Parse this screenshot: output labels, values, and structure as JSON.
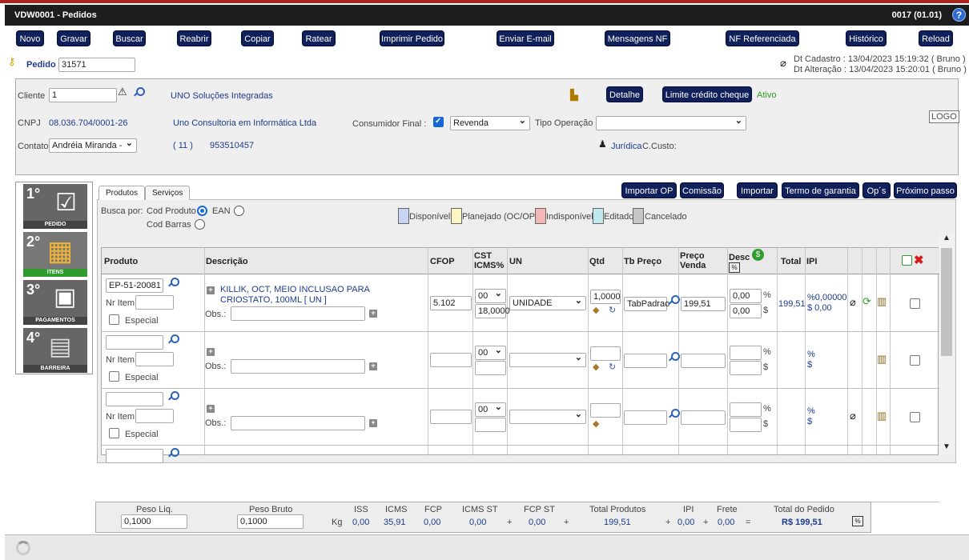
{
  "window": {
    "title": "VDW0001 - Pedidos",
    "code": "0017 (01.01)",
    "help": "?"
  },
  "toolbar": [
    "Novo",
    "Gravar",
    "Buscar",
    "Reabrir",
    "Copiar",
    "Ratear",
    "Imprimir Pedido",
    "Enviar E-mail",
    "Mensagens NF",
    "NF Referenciada",
    "Histórico",
    "Reload"
  ],
  "pedido": {
    "label": "Pedido",
    "value": "31571",
    "dt_cadastro": "Dt Cadastro : 13/04/2023 15:19:32 ( Bruno )",
    "dt_alteracao": "Dt Alteração : 13/04/2023 15:20:01 ( Bruno )"
  },
  "cliente": {
    "label": "Cliente",
    "value": "1",
    "name": "UNO Soluções Integradas",
    "detalhe": "Detalhe",
    "limite": "Limite crédito cheque",
    "status": "Ativo",
    "logo": "LOGO"
  },
  "cnpj": {
    "label": "CNPJ",
    "value": "08.036.704/0001-26",
    "razao": "Uno Consultoria em Informática Ltda",
    "consumidor_label": "Consumidor Final :",
    "consumidor_select": "Revenda",
    "tipo_label": "Tipo Operação",
    "tipo_value": ""
  },
  "contato": {
    "label": "Contato",
    "value": "Andréia Miranda -",
    "ddd": "(   11   )",
    "phone": "953510457",
    "juridica": "Jurídica",
    "ccusto": "C.Custo:"
  },
  "steps": [
    {
      "num": "1°",
      "caption": "PEDIDO"
    },
    {
      "num": "2°",
      "caption": "ITENS"
    },
    {
      "num": "3°",
      "caption": "PAGAMENTOS"
    },
    {
      "num": "4°",
      "caption": "BARREIRA"
    }
  ],
  "tabs": [
    "Produtos",
    "Serviços"
  ],
  "actions": [
    "Importar OP",
    "Comissão",
    "Importar",
    "Termo de garantia",
    "Op´s",
    "Próximo passo"
  ],
  "busca": {
    "label": "Busca por:",
    "opt1": "Cod Produto",
    "opt2": "EAN",
    "opt3": "Cod Barras"
  },
  "legend": [
    {
      "label": "Disponível",
      "color": "#c9d4f5"
    },
    {
      "label": "Planejado (OC/OP)",
      "color": "#fbf6c2"
    },
    {
      "label": "Indisponível",
      "color": "#f5b6b6"
    },
    {
      "label": "Editado",
      "color": "#bfe9ec"
    },
    {
      "label": "Cancelado",
      "color": "#c6c6c6"
    }
  ],
  "grid": {
    "headers": {
      "produto": "Produto",
      "descricao": "Descrição",
      "cfop": "CFOP",
      "cst": "CST ICMS%",
      "un": "UN",
      "qtd": "Qtd",
      "tb": "Tb Preço",
      "preco": "Preço Venda",
      "desc": "Desc",
      "total": "Total",
      "ipi": "IPI"
    },
    "labels": {
      "nr_item": "Nr Item",
      "especial": "Especial",
      "obs": "Obs.:",
      "pct": "%",
      "cur": "$"
    },
    "row1": {
      "produto": "EP-51-20081",
      "descricao": "KILLIK, OCT, MEIO INCLUSAO PARA CRIOSTATO, 100ML [ UN ]",
      "cfop": "5.102",
      "cst": "00",
      "icms": "18,0000",
      "un": "UNIDADE",
      "qtd": "1,0000",
      "tb": "TabPadrao",
      "preco": "199,51",
      "desc_pct": "0,00",
      "desc_val": "0,00",
      "total": "199,51",
      "ipi_pct": "%0,00000",
      "ipi_val": "$ 0,00"
    },
    "row2": {
      "cst": "00"
    },
    "row3": {
      "cst": "00"
    }
  },
  "footer": {
    "peso_liq_label": "Peso Liq.",
    "peso_liq": "0,1000",
    "peso_bruto_label": "Peso Bruto",
    "peso_bruto": "0,1000",
    "kg": "Kg",
    "iss_label": "ISS",
    "iss": "0,00",
    "icms_label": "ICMS",
    "icms": "35,91",
    "fcp_label": "FCP",
    "fcp": "0,00",
    "icmsst_label": "ICMS ST",
    "icmsst": "0,00",
    "fcpst_label": "FCP ST",
    "fcpst": "0,00",
    "total_prod_label": "Total Produtos",
    "total_prod": "199,51",
    "ipi_label": "IPI",
    "ipi": "0,00",
    "frete_label": "Frete",
    "frete": "0,00",
    "total_label": "Total do Pedido",
    "total": "R$ 199,51",
    "plus": "+",
    "eq": "="
  }
}
